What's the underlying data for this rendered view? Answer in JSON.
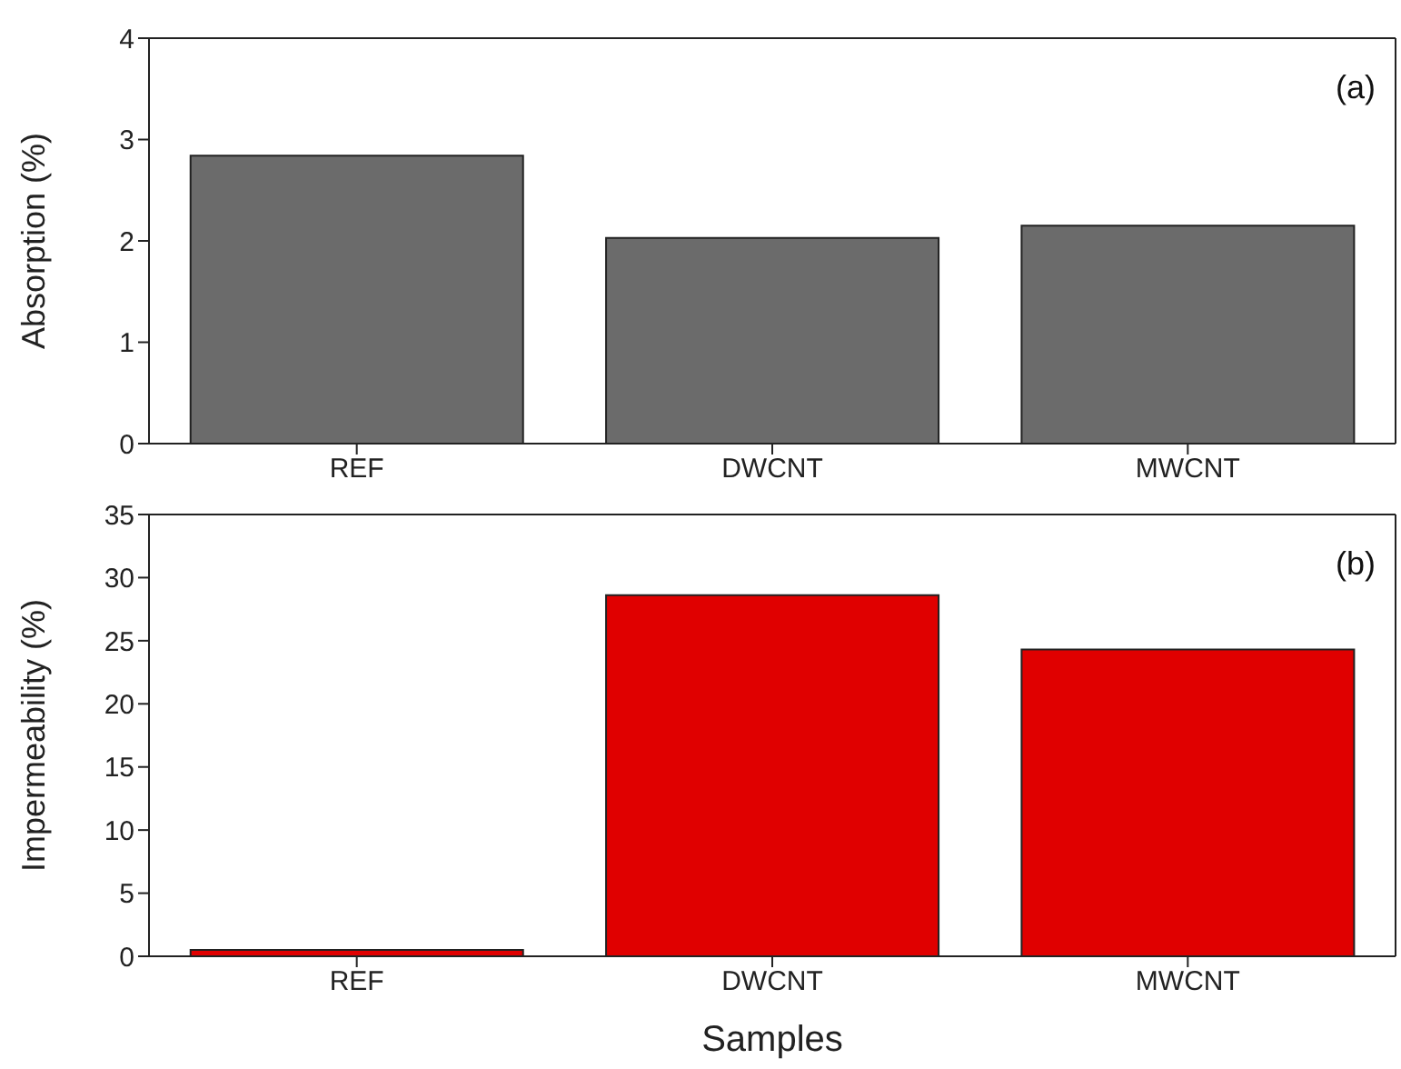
{
  "chart_data": [
    {
      "type": "bar",
      "ylabel": "Absorption (%)",
      "categories": [
        "REF",
        "DWCNT",
        "MWCNT"
      ],
      "values": [
        2.84,
        2.03,
        2.15
      ],
      "color": "#6b6b6b",
      "ylim": [
        0,
        4
      ],
      "yticks": [
        0,
        1,
        2,
        3,
        4
      ],
      "grid": false,
      "legend": false,
      "annotations": [
        "(a)"
      ]
    },
    {
      "type": "bar",
      "ylabel": "Impermeability (%)",
      "xlabel": "Samples",
      "categories": [
        "REF",
        "DWCNT",
        "MWCNT"
      ],
      "values": [
        0.5,
        28.6,
        24.3
      ],
      "color": "#e00000",
      "ylim": [
        0,
        35
      ],
      "yticks": [
        0,
        5,
        10,
        15,
        20,
        25,
        30,
        35
      ],
      "grid": false,
      "legend": false,
      "annotations": [
        "(b)"
      ]
    }
  ]
}
